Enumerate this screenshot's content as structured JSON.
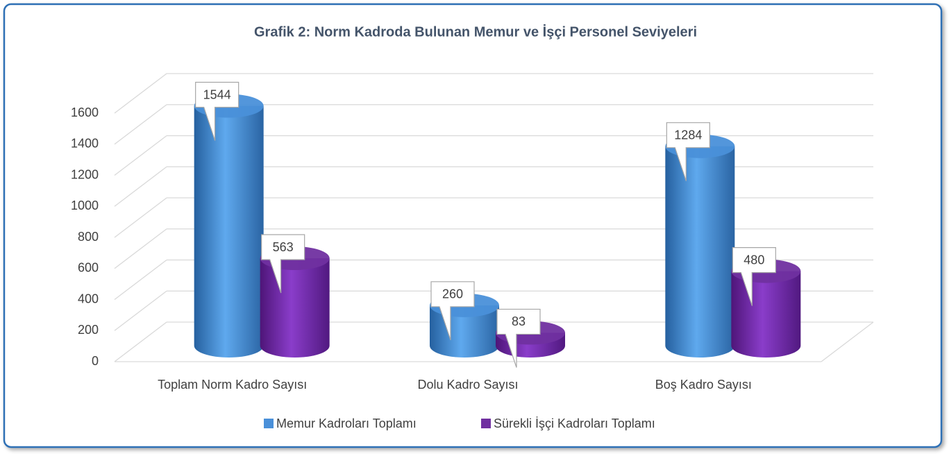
{
  "chart_data": {
    "type": "bar3d",
    "title": "Grafik 2: Norm Kadroda Bulunan Memur ve İşçi Personel Seviyeleri",
    "categories": [
      "Toplam Norm Kadro Sayısı",
      "Dolu Kadro Sayısı",
      "Boş Kadro Sayısı"
    ],
    "series": [
      {
        "name": "Memur Kadroları Toplamı",
        "color": "#4a90d9",
        "values": [
          1544,
          260,
          1284
        ]
      },
      {
        "name": "Sürekli İşçi Kadroları Toplamı",
        "color": "#7030a0",
        "values": [
          563,
          83,
          480
        ]
      }
    ],
    "ylim": [
      0,
      1600
    ],
    "yticks": [
      0,
      200,
      400,
      600,
      800,
      1000,
      1200,
      1400,
      1600
    ],
    "grid": true,
    "legend": "bottom"
  }
}
